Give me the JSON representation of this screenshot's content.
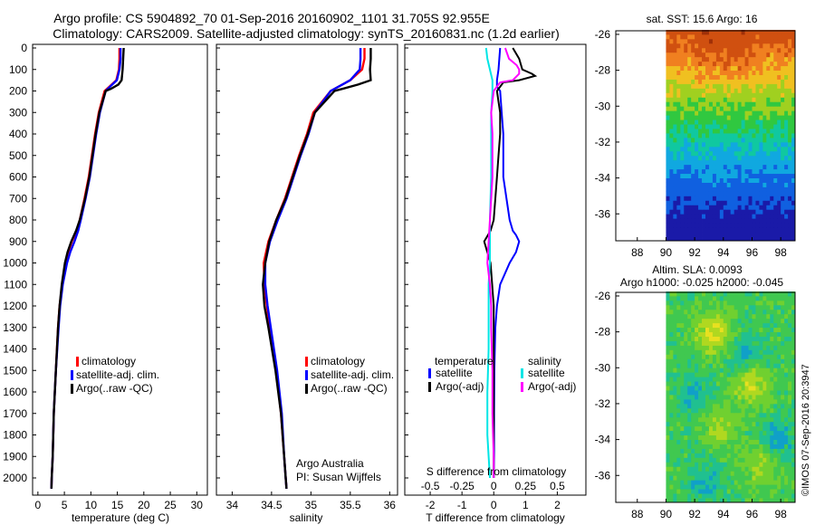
{
  "header": {
    "line1": "Argo profile: CS 5904892_70 01-Sep-2016 20160902_1101 31.705S 92.955E",
    "line2": "Climatology: CARS2009. Satellite-adjusted climatology: synTS_20160831.nc (1.2d earlier)"
  },
  "colors": {
    "climatology": "#ff0000",
    "satellite": "#0000ff",
    "argo": "#000000",
    "salinity_sat": "#00e5e5",
    "salinity_argo": "#ff00ff"
  },
  "depth_ticks": [
    "0",
    "100",
    "200",
    "300",
    "400",
    "500",
    "600",
    "700",
    "800",
    "900",
    "1000",
    "1100",
    "1200",
    "1300",
    "1400",
    "1500",
    "1600",
    "1700",
    "1800",
    "1900",
    "2000"
  ],
  "legend1": {
    "clim": "climatology",
    "sat": "satellite-adj. clim.",
    "argo": "Argo(..raw -QC)"
  },
  "legend2": {
    "clim": "climatology",
    "sat": "satellite-adj. clim.",
    "argo": "Argo(..raw -QC)"
  },
  "legend3": {
    "temp_head": "temperature",
    "temp_sat": "satellite",
    "temp_argo": "Argo(-adj)",
    "sal_head": "salinity",
    "sal_sat": "satellite",
    "sal_argo": "Argo(-adj)"
  },
  "salinity_notes": {
    "line1": "Argo Australia",
    "line2": "PI: Susan Wijffels"
  },
  "diff_top_axis_label": "S difference from climatology",
  "sat_title": "sat. SST: 15.6 Argo: 16",
  "alt_title1": "Altim. SLA: 0.0093",
  "alt_title2": "Argo h1000: -0.025 h2000: -0.045",
  "imos_label": "©IMOS 07-Sep-2016 20:3947",
  "chart_data": [
    {
      "type": "line",
      "id": "temperature",
      "xlabel": "temperature (deg C)",
      "ylabel": "",
      "xlim": [
        -1,
        32
      ],
      "ylim": [
        2080,
        0
      ],
      "xticks": [
        "0",
        "5",
        "10",
        "15",
        "20",
        "25",
        "30"
      ],
      "series": [
        {
          "name": "climatology",
          "depth": [
            0,
            50,
            100,
            150,
            180,
            200,
            300,
            400,
            500,
            600,
            700,
            800,
            850,
            900,
            950,
            1000,
            1100,
            1200,
            1300,
            1500,
            1700,
            1900,
            2000,
            2050
          ],
          "x": [
            15.4,
            15.4,
            15.3,
            14.8,
            13.5,
            12.6,
            11.5,
            10.8,
            10.2,
            9.6,
            8.8,
            7.9,
            7.3,
            6.4,
            5.7,
            5.2,
            4.6,
            4.1,
            3.8,
            3.4,
            3.0,
            2.8,
            2.6,
            2.55
          ]
        },
        {
          "name": "satellite-adj. clim.",
          "depth": [
            0,
            50,
            100,
            150,
            180,
            200,
            300,
            400,
            500,
            600,
            700,
            800,
            850,
            900,
            950,
            1000,
            1100,
            1200,
            1300,
            1500,
            1700,
            1900,
            2000,
            2050
          ],
          "x": [
            15.6,
            15.6,
            15.4,
            14.9,
            13.6,
            12.8,
            11.7,
            11.0,
            10.4,
            9.8,
            9.0,
            8.1,
            7.6,
            6.9,
            6.1,
            5.5,
            4.7,
            4.2,
            3.9,
            3.4,
            3.0,
            2.8,
            2.6,
            2.55
          ]
        },
        {
          "name": "Argo(..raw -QC)",
          "depth": [
            0,
            50,
            100,
            150,
            170,
            190,
            200,
            300,
            400,
            500,
            600,
            700,
            800,
            850,
            900,
            950,
            1000,
            1100,
            1200,
            1300,
            1500,
            1700,
            1900,
            2000,
            2050
          ],
          "x": [
            16.2,
            16.1,
            16.0,
            15.8,
            15.2,
            13.8,
            12.8,
            11.6,
            10.9,
            10.3,
            9.7,
            8.9,
            7.9,
            7.2,
            6.3,
            5.6,
            5.1,
            4.5,
            4.1,
            3.8,
            3.4,
            3.0,
            2.8,
            2.6,
            2.55
          ]
        }
      ]
    },
    {
      "type": "line",
      "id": "salinity",
      "xlabel": "salinity",
      "ylabel": "",
      "xlim": [
        33.8,
        36.1
      ],
      "ylim": [
        2080,
        0
      ],
      "xticks": [
        "34",
        "34.5",
        "35",
        "35.5",
        "36"
      ],
      "series": [
        {
          "name": "climatology",
          "depth": [
            0,
            50,
            100,
            150,
            200,
            300,
            400,
            500,
            600,
            700,
            800,
            900,
            1000,
            1100,
            1200,
            1300,
            1500,
            1700,
            1900,
            2000,
            2050
          ],
          "x": [
            35.68,
            35.68,
            35.65,
            35.5,
            35.25,
            35.03,
            34.95,
            34.85,
            34.76,
            34.67,
            34.56,
            34.46,
            34.4,
            34.41,
            34.44,
            34.48,
            34.56,
            34.62,
            34.66,
            34.68,
            34.69
          ]
        },
        {
          "name": "satellite-adj. clim.",
          "depth": [
            0,
            50,
            100,
            150,
            200,
            300,
            400,
            500,
            600,
            700,
            800,
            900,
            1000,
            1100,
            1200,
            1300,
            1500,
            1700,
            1900,
            2000,
            2050
          ],
          "x": [
            35.63,
            35.63,
            35.62,
            35.5,
            35.25,
            35.05,
            34.97,
            34.87,
            34.78,
            34.69,
            34.58,
            34.48,
            34.42,
            34.42,
            34.45,
            34.49,
            34.57,
            34.63,
            34.66,
            34.68,
            34.69
          ]
        },
        {
          "name": "Argo(..raw -QC)",
          "depth": [
            0,
            50,
            100,
            150,
            170,
            200,
            300,
            400,
            500,
            600,
            700,
            800,
            900,
            1000,
            1100,
            1200,
            1300,
            1500,
            1700,
            1900,
            2000,
            2050
          ],
          "x": [
            35.76,
            35.76,
            35.75,
            35.76,
            35.6,
            35.3,
            35.05,
            34.96,
            34.86,
            34.77,
            34.68,
            34.56,
            34.47,
            34.42,
            34.39,
            34.41,
            34.46,
            34.55,
            34.62,
            34.66,
            34.68,
            34.69
          ]
        }
      ]
    },
    {
      "type": "line",
      "id": "differences",
      "xlabel": "T difference from climatology",
      "xlabel_top": "S difference from climatology",
      "xlim": [
        -2.8,
        2.9
      ],
      "ylim": [
        2080,
        0
      ],
      "xticks": [
        "-2",
        "-1",
        "0",
        "1",
        "2"
      ],
      "xticks_top": [
        "-0.5",
        "-0.25",
        "0",
        "0.25",
        "0.5"
      ],
      "series": [
        {
          "name": "temperature satellite",
          "depth": [
            0,
            100,
            150,
            180,
            200,
            300,
            400,
            500,
            600,
            700,
            800,
            850,
            870,
            900,
            950,
            1000,
            1100,
            1200,
            1300,
            1500,
            1700,
            1900,
            2000
          ],
          "x": [
            0.2,
            0.15,
            0.1,
            0.1,
            0.2,
            0.25,
            0.3,
            0.3,
            0.3,
            0.4,
            0.5,
            0.6,
            0.7,
            0.8,
            0.7,
            0.5,
            0.2,
            0.1,
            0.05,
            0.02,
            0.01,
            0.01,
            0.0
          ]
        },
        {
          "name": "temperature Argo(-adj)",
          "depth": [
            0,
            50,
            100,
            120,
            130,
            150,
            160,
            200,
            250,
            300,
            400,
            500,
            600,
            700,
            800,
            850,
            900,
            950,
            1000,
            1100,
            1200,
            1300,
            1500,
            1700,
            1900,
            2000
          ],
          "x": [
            0.6,
            0.8,
            0.9,
            1.2,
            1.3,
            0.8,
            0.3,
            0.1,
            0.15,
            0.2,
            0.2,
            0.15,
            0.1,
            0.05,
            0.0,
            -0.1,
            -0.3,
            -0.2,
            -0.1,
            -0.05,
            0.0,
            0.0,
            0.0,
            0.0,
            0.0,
            0.0
          ]
        },
        {
          "name": "salinity satellite",
          "depth": [
            0,
            50,
            100,
            150,
            200,
            300,
            400,
            600,
            800,
            1000,
            1100,
            1200,
            1400,
            1600,
            1800,
            1900,
            2000
          ],
          "x": [
            -0.06,
            -0.05,
            -0.03,
            -0.01,
            -0.01,
            -0.02,
            -0.02,
            -0.02,
            -0.03,
            -0.03,
            -0.04,
            -0.04,
            -0.04,
            -0.05,
            -0.05,
            -0.04,
            -0.03
          ]
        },
        {
          "name": "salinity Argo(-adj)",
          "depth": [
            0,
            50,
            80,
            100,
            120,
            150,
            160,
            200,
            250,
            300,
            400,
            500,
            600,
            700,
            800,
            900,
            1000,
            1050,
            1100,
            1200,
            1300,
            1500,
            1700,
            1900,
            2000
          ],
          "x": [
            0.09,
            0.12,
            0.18,
            0.2,
            0.2,
            0.15,
            0.05,
            0.0,
            -0.01,
            -0.02,
            -0.01,
            -0.01,
            -0.01,
            -0.02,
            -0.03,
            -0.04,
            -0.05,
            -0.04,
            -0.03,
            -0.02,
            -0.02,
            -0.01,
            -0.01,
            0.0,
            0.0
          ]
        }
      ]
    },
    {
      "type": "heatmap",
      "id": "sat_sst",
      "title": "sat. SST: 15.6 Argo: 16",
      "xlim": [
        86.5,
        99
      ],
      "ylim": [
        -37.5,
        -25.8
      ],
      "xticks": [
        "88",
        "90",
        "92",
        "94",
        "96",
        "98"
      ],
      "yticks": [
        "-26",
        "-28",
        "-30",
        "-32",
        "-34",
        "-36"
      ]
    },
    {
      "type": "heatmap",
      "id": "altim_sla",
      "title": "Altim. SLA: 0.0093",
      "xlim": [
        86.5,
        99
      ],
      "ylim": [
        -37.5,
        -25.8
      ],
      "xticks": [
        "88",
        "90",
        "92",
        "94",
        "96",
        "98"
      ],
      "yticks": [
        "-26",
        "-28",
        "-30",
        "-32",
        "-34",
        "-36"
      ]
    }
  ]
}
